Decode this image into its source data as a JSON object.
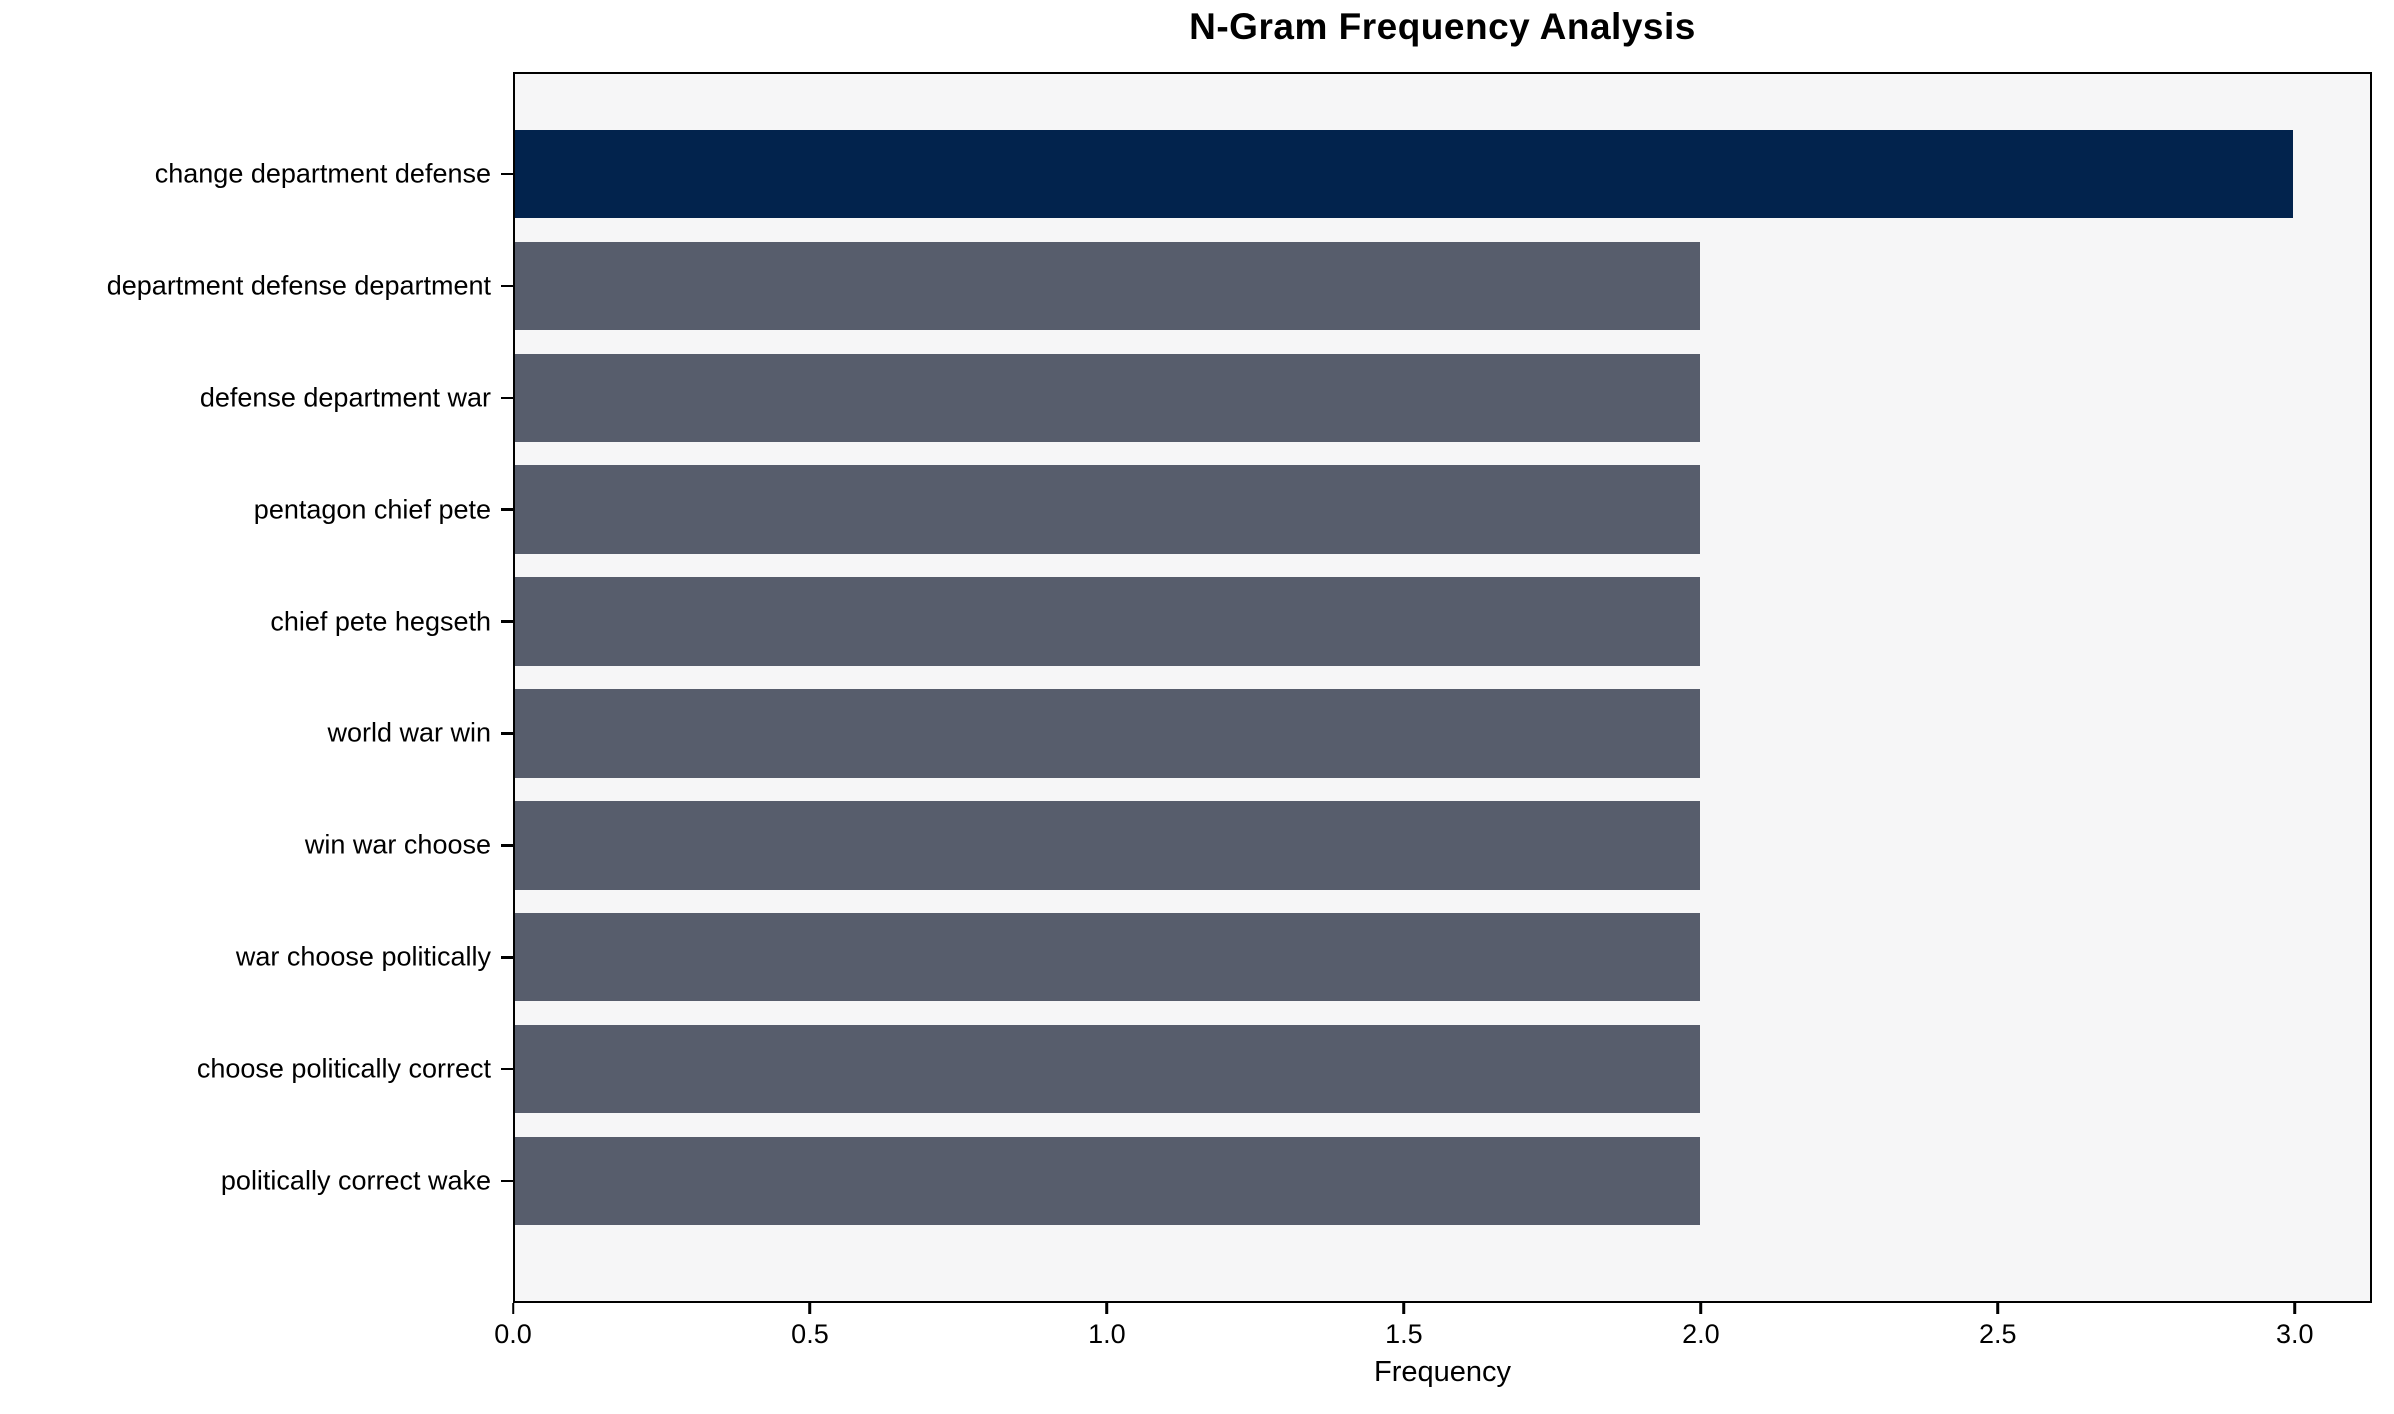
{
  "chart_data": {
    "type": "bar",
    "orientation": "horizontal",
    "title": "N-Gram Frequency Analysis",
    "xlabel": "Frequency",
    "ylabel": "",
    "categories": [
      "change department defense",
      "department defense department",
      "defense department war",
      "pentagon chief pete",
      "chief pete hegseth",
      "world war win",
      "win war choose",
      "war choose politically",
      "choose politically correct",
      "politically correct wake"
    ],
    "values": [
      3,
      2,
      2,
      2,
      2,
      2,
      2,
      2,
      2,
      2
    ],
    "xlim": [
      0,
      3.13
    ],
    "xticks": [
      0.0,
      0.5,
      1.0,
      1.5,
      2.0,
      2.5,
      3.0
    ],
    "highlight_index": 0,
    "colors": {
      "highlight_bar": "#02234d",
      "default_bar": "#575d6c",
      "plot_background": "#f6f6f7",
      "frame": "#000000",
      "text": "#000000"
    },
    "grid": false,
    "legend": null
  }
}
